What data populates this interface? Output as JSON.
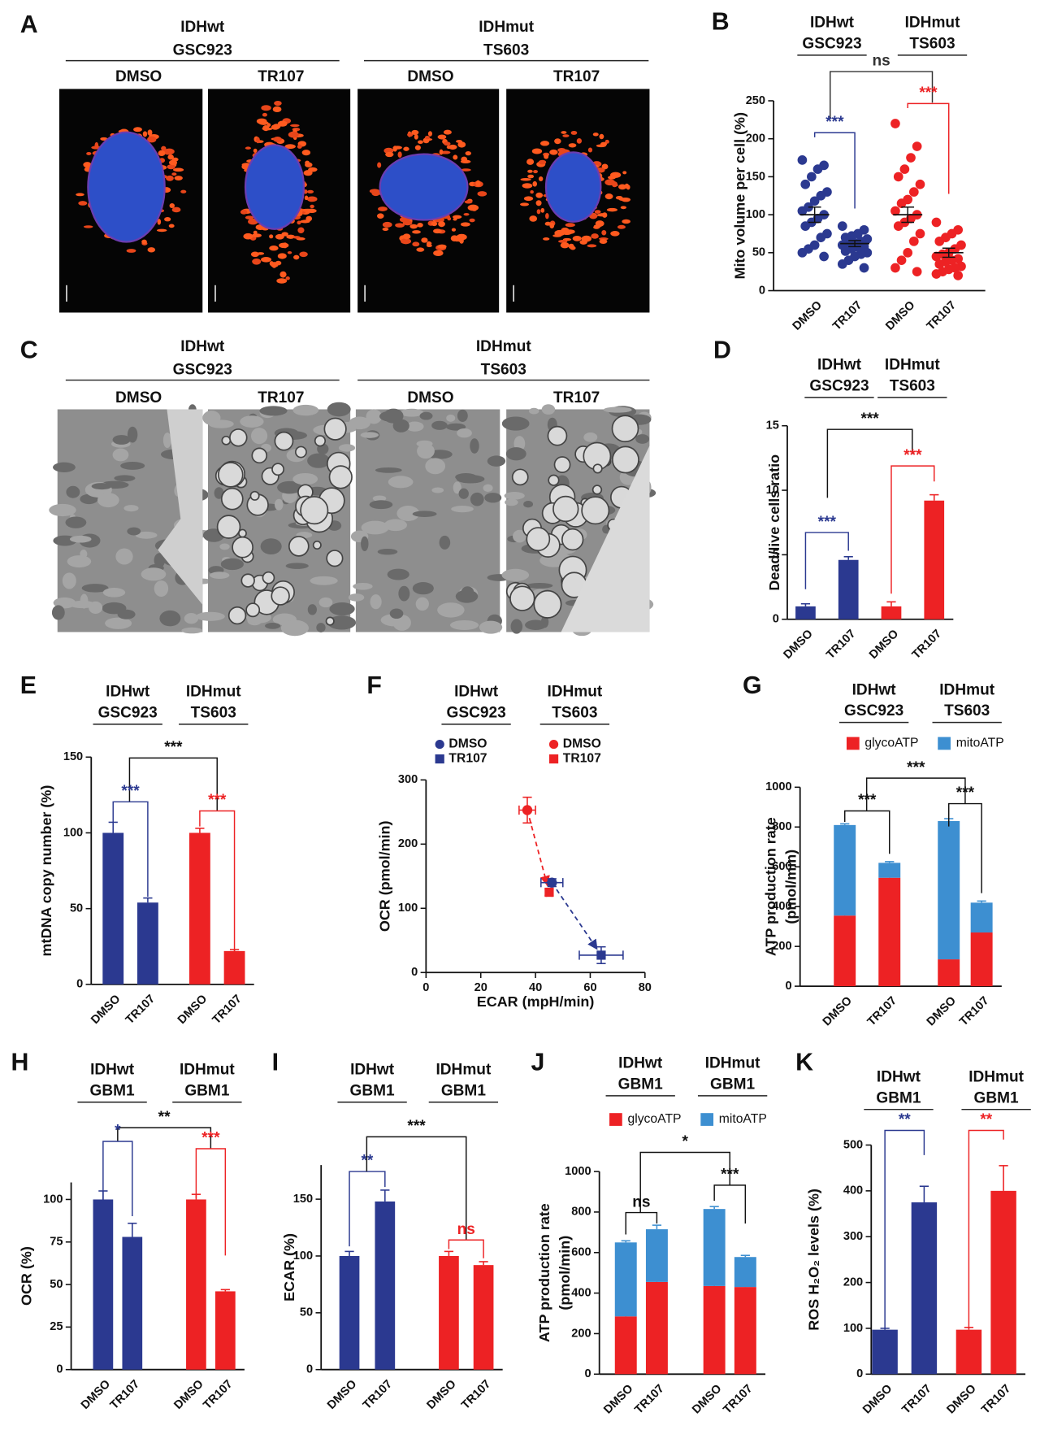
{
  "images": [
    {
      "letter": "A",
      "groups": [
        [
          "IDHwt",
          "GSC923"
        ],
        [
          "IDHmut",
          "TS603"
        ]
      ],
      "labels": [
        "DMSO",
        "TR107",
        "DMSO",
        "TR107"
      ]
    },
    {
      "letter": "C",
      "groups": [
        [
          "IDHwt",
          "GSC923"
        ],
        [
          "IDHmut",
          "TS603"
        ]
      ],
      "labels": [
        "DMSO",
        "TR107",
        "DMSO",
        "TR107"
      ]
    }
  ],
  "chart_data": [
    {
      "letter": "B",
      "type": "dot",
      "groups": [
        [
          "IDHwt",
          "GSC923"
        ],
        [
          "IDHmut",
          "TS603"
        ]
      ],
      "categories": [
        "DMSO",
        "TR107",
        "DMSO",
        "TR107"
      ],
      "colors": [
        "#2b3990",
        "#2b3990",
        "#ed2224",
        "#ed2224"
      ],
      "points": [
        [
          172,
          165,
          160,
          150,
          140,
          130,
          125,
          118,
          110,
          105,
          100,
          95,
          90,
          85,
          75,
          70,
          60,
          55,
          50,
          45
        ],
        [
          85,
          80,
          75,
          72,
          70,
          68,
          65,
          63,
          62,
          60,
          58,
          57,
          55,
          52,
          50,
          48,
          45,
          40,
          35,
          30
        ],
        [
          220,
          190,
          175,
          160,
          150,
          140,
          130,
          120,
          115,
          105,
          100,
          95,
          90,
          85,
          75,
          65,
          50,
          40,
          30,
          25
        ],
        [
          90,
          80,
          75,
          70,
          65,
          60,
          55,
          50,
          48,
          45,
          42,
          40,
          38,
          35,
          32,
          30,
          28,
          25,
          22,
          20
        ]
      ],
      "means": [
        100,
        62,
        100,
        50
      ],
      "sems": [
        10,
        4,
        10,
        6
      ],
      "ylabel": "Mito volume per cell (%)",
      "ylim": [
        0,
        250
      ],
      "yticks": [
        0,
        50,
        100,
        150,
        200,
        250
      ],
      "annotations": [
        {
          "text": "ns",
          "color": "#333333"
        },
        {
          "text": "***",
          "color": "#2b3990"
        },
        {
          "text": "***",
          "color": "#ed2224"
        }
      ]
    },
    {
      "letter": "D",
      "type": "bar",
      "groups": [
        [
          "IDHwt",
          "GSC923"
        ],
        [
          "IDHmut",
          "TS603"
        ]
      ],
      "categories": [
        "DMSO",
        "TR107",
        "DMSO",
        "TR107"
      ],
      "colors": [
        "#2b3990",
        "#2b3990",
        "#ed2224",
        "#ed2224"
      ],
      "values": [
        1,
        4.6,
        1,
        9.2
      ],
      "errors": [
        0.2,
        0.25,
        0.35,
        0.45
      ],
      "ylabel": "Dead/live cells ratio",
      "ylim": [
        0,
        15
      ],
      "yticks": [
        0,
        5,
        10,
        15
      ],
      "annotations": [
        {
          "text": "***",
          "color": "#111111"
        },
        {
          "text": "***",
          "color": "#2b3990"
        },
        {
          "text": "***",
          "color": "#ed2224"
        }
      ]
    },
    {
      "letter": "E",
      "type": "bar",
      "groups": [
        [
          "IDHwt",
          "GSC923"
        ],
        [
          "IDHmut",
          "TS603"
        ]
      ],
      "categories": [
        "DMSO",
        "TR107",
        "DMSO",
        "TR107"
      ],
      "colors": [
        "#2b3990",
        "#2b3990",
        "#ed2224",
        "#ed2224"
      ],
      "values": [
        100,
        54,
        100,
        22
      ],
      "errors": [
        7,
        3,
        3,
        1
      ],
      "ylabel": "mtDNA copy number (%)",
      "ylim": [
        0,
        150
      ],
      "yticks": [
        0,
        50,
        100,
        150
      ],
      "annotations": [
        {
          "text": "***",
          "color": "#111111"
        },
        {
          "text": "***",
          "color": "#2b3990"
        },
        {
          "text": "***",
          "color": "#ed2224"
        }
      ]
    },
    {
      "letter": "F",
      "type": "scatter",
      "groups": [
        [
          "IDHwt",
          "GSC923"
        ],
        [
          "IDHmut",
          "TS603"
        ]
      ],
      "series": [
        {
          "name": "DMSO",
          "color": "#2b3990",
          "marker": "circle",
          "x": [
            46
          ],
          "values": [
            140
          ],
          "xerr": [
            4
          ],
          "yerr": [
            6
          ]
        },
        {
          "name": "TR107",
          "color": "#2b3990",
          "marker": "square",
          "x": [
            64
          ],
          "values": [
            27
          ],
          "xerr": [
            8
          ],
          "yerr": [
            13
          ]
        },
        {
          "name": "DMSO",
          "color": "#ed2224",
          "marker": "circle",
          "x": [
            37
          ],
          "values": [
            253
          ],
          "xerr": [
            3
          ],
          "yerr": [
            20
          ]
        },
        {
          "name": "TR107",
          "color": "#ed2224",
          "marker": "square",
          "x": [
            45
          ],
          "values": [
            125
          ],
          "xerr": [
            1
          ],
          "yerr": [
            5
          ]
        }
      ],
      "xlabel": "ECAR (mpH/min)",
      "ylabel": "OCR (pmol/min)",
      "xlim": [
        0,
        80
      ],
      "xticks": [
        0,
        20,
        40,
        60,
        80
      ],
      "ylim": [
        0,
        300
      ],
      "yticks": [
        0,
        100,
        200,
        300
      ]
    },
    {
      "letter": "G",
      "type": "stacked",
      "groups": [
        [
          "IDHwt",
          "GSC923"
        ],
        [
          "IDHmut",
          "TS603"
        ]
      ],
      "categories": [
        "DMSO",
        "TR107",
        "DMSO",
        "TR107"
      ],
      "series": [
        {
          "name": "glycoATP",
          "color": "#ed2224",
          "values": [
            355,
            545,
            135,
            270
          ],
          "errors": [
            5,
            8,
            5,
            8
          ]
        },
        {
          "name": "mitoATP",
          "color": "#3d8fd1",
          "values": [
            455,
            75,
            695,
            150
          ],
          "errors": [
            6,
            6,
            12,
            8
          ]
        }
      ],
      "ylabel": [
        "ATP production rate",
        "(pmol/min)"
      ],
      "ylim": [
        0,
        1000
      ],
      "yticks": [
        0,
        200,
        400,
        600,
        800,
        1000
      ],
      "annotations": [
        {
          "text": "***",
          "color": "#111111"
        },
        {
          "text": "***",
          "color": "#111111"
        },
        {
          "text": "***",
          "color": "#111111"
        }
      ]
    },
    {
      "letter": "H",
      "type": "bar",
      "groups": [
        [
          "IDHwt",
          "GBM1"
        ],
        [
          "IDHmut",
          "GBM1"
        ]
      ],
      "categories": [
        "DMSO",
        "TR107",
        "DMSO",
        "TR107"
      ],
      "colors": [
        "#2b3990",
        "#2b3990",
        "#ed2224",
        "#ed2224"
      ],
      "values": [
        100,
        78,
        100,
        46
      ],
      "errors": [
        5,
        8,
        3,
        1
      ],
      "ylabel": "OCR (%)",
      "ylim": [
        0,
        110
      ],
      "yticks": [
        0,
        25,
        50,
        75,
        100
      ],
      "annotations": [
        {
          "text": "**",
          "color": "#111111"
        },
        {
          "text": "*",
          "color": "#2b3990"
        },
        {
          "text": "***",
          "color": "#ed2224"
        }
      ]
    },
    {
      "letter": "I",
      "type": "bar",
      "groups": [
        [
          "IDHwt",
          "GBM1"
        ],
        [
          "IDHmut",
          "GBM1"
        ]
      ],
      "categories": [
        "DMSO",
        "TR107",
        "DMSO",
        "TR107"
      ],
      "colors": [
        "#2b3990",
        "#2b3990",
        "#ed2224",
        "#ed2224"
      ],
      "values": [
        100,
        148,
        100,
        92
      ],
      "errors": [
        4,
        10,
        4,
        3
      ],
      "ylabel": "ECAR (%)",
      "ylim": [
        0,
        180
      ],
      "yticks": [
        0,
        50,
        100,
        150
      ],
      "annotations": [
        {
          "text": "**",
          "color": "#2b3990"
        },
        {
          "text": "***",
          "color": "#111111"
        },
        {
          "text": "ns",
          "color": "#ed2224"
        }
      ]
    },
    {
      "letter": "J",
      "type": "stacked",
      "groups": [
        [
          "IDHwt",
          "GBM1"
        ],
        [
          "IDHmut",
          "GBM1"
        ]
      ],
      "categories": [
        "DMSO",
        "TR107",
        "DMSO",
        "TR107"
      ],
      "series": [
        {
          "name": "glycoATP",
          "color": "#ed2224",
          "values": [
            285,
            455,
            435,
            430
          ],
          "errors": [
            5,
            30,
            10,
            10
          ]
        },
        {
          "name": "mitoATP",
          "color": "#3d8fd1",
          "values": [
            365,
            260,
            380,
            148
          ],
          "errors": [
            8,
            20,
            12,
            8
          ]
        }
      ],
      "ylabel": [
        "ATP production rate",
        "(pmol/min)"
      ],
      "ylim": [
        0,
        1000
      ],
      "yticks": [
        0,
        200,
        400,
        600,
        800,
        1000
      ],
      "annotations": [
        {
          "text": "*",
          "color": "#111111"
        },
        {
          "text": "ns",
          "color": "#111111"
        },
        {
          "text": "***",
          "color": "#111111"
        }
      ]
    },
    {
      "letter": "K",
      "type": "bar",
      "groups": [
        [
          "IDHwt",
          "GBM1"
        ],
        [
          "IDHmut",
          "GBM1"
        ]
      ],
      "categories": [
        "DMSO",
        "TR107",
        "DMSO",
        "TR107"
      ],
      "colors": [
        "#2b3990",
        "#2b3990",
        "#ed2224",
        "#ed2224"
      ],
      "values": [
        97,
        375,
        97,
        400
      ],
      "errors": [
        3,
        35,
        5,
        55
      ],
      "ylabel": "ROS H₂O₂ levels (%)",
      "ylim": [
        0,
        500
      ],
      "yticks": [
        0,
        100,
        200,
        300,
        400,
        500
      ],
      "annotations": [
        {
          "text": "**",
          "color": "#2b3990"
        },
        {
          "text": "**",
          "color": "#ed2224"
        }
      ]
    }
  ]
}
